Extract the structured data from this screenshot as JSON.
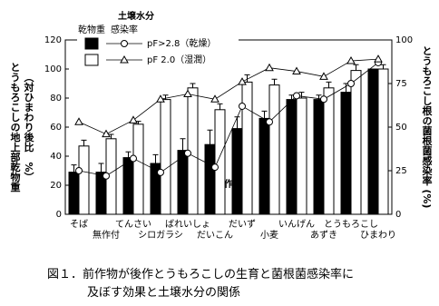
{
  "chart_data": {
    "type": "bar",
    "categories": [
      "そば",
      "無作付",
      "てんさい",
      "シロガラシ",
      "ばれいしょ",
      "だいこん",
      "だいず",
      "小麦",
      "いんげん",
      "あずき",
      "とうもろこし",
      "ひまわり"
    ],
    "xlabel": "前作物",
    "ylabel": [
      "とうもろこしの地上部乾物重",
      "（対ひまわり後比　%）"
    ],
    "y2label": "とうもろこし根の菌根菌感染率 (%)",
    "ylim": [
      0,
      120
    ],
    "yticks": [
      0,
      20,
      40,
      60,
      80,
      100,
      120
    ],
    "y2lim": [
      0,
      100
    ],
    "y2ticks": [
      0,
      25,
      50,
      75,
      100
    ],
    "legend": {
      "title": "土壌水分",
      "headers": [
        "乾物重",
        "感染率"
      ]
    },
    "series": [
      {
        "name": "pF>2.8（乾燥）",
        "color": "#000000",
        "values": [
          29,
          29,
          39,
          35,
          44,
          48,
          59,
          66,
          79,
          79,
          84,
          100
        ],
        "errors": [
          5,
          6,
          4,
          6,
          8,
          10,
          8,
          5,
          3,
          3,
          6,
          0
        ]
      },
      {
        "name": "pF 2.0（湿潤）",
        "color": "#ffffff",
        "values": [
          47,
          52,
          62,
          79,
          87,
          72,
          91,
          89,
          80,
          87,
          99,
          100
        ],
        "errors": [
          4,
          3,
          2,
          3,
          3,
          4,
          5,
          4,
          4,
          4,
          4,
          3
        ]
      },
      {
        "type": "line",
        "marker": "circle",
        "axis": "y2",
        "color": "#000000",
        "values": [
          25,
          22,
          32,
          24,
          35,
          27,
          62,
          53,
          68,
          66,
          75,
          87
        ]
      },
      {
        "type": "line",
        "marker": "triangle",
        "axis": "y2",
        "color": "#000000",
        "values": [
          53,
          46,
          54,
          66,
          69,
          66,
          76,
          84,
          82,
          79,
          88,
          89
        ]
      }
    ],
    "caption": [
      "図１．前作物が後作とうもろこしの生育と菌根菌感染率に",
      "及ぼす効果と土壌水分の関係"
    ]
  }
}
